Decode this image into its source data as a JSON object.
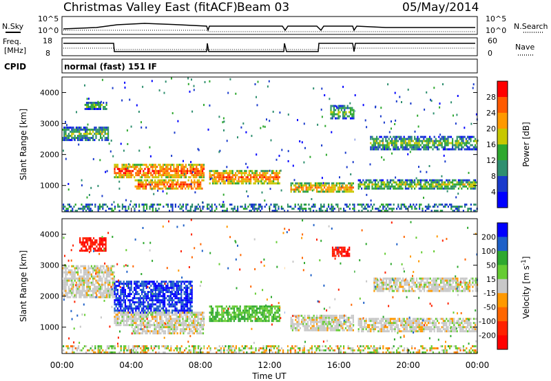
{
  "header": {
    "station": "Christmas Valley East (fitACF)",
    "beam": "Beam 03",
    "date": "05/May/2014"
  },
  "top_panels": {
    "nsky_label": "N.Sky",
    "nsky_ticks": [
      "10^5",
      "10^0"
    ],
    "nsearch_label": "N.Search",
    "nsearch_ticks": [
      "10^5",
      "10^0"
    ],
    "freq_label": "Freq.",
    "freq_unit": "[MHz]",
    "freq_ticks": [
      "18",
      "8"
    ],
    "nave_label": "Nave",
    "nave_ticks": [
      "60",
      "0"
    ],
    "cpid_label": "CPID",
    "cpid_value": "normal (fast) 151 IF"
  },
  "chart_data": [
    {
      "type": "heatmap",
      "name": "power",
      "ylabel": "Slant Range [km]",
      "xlabel": "",
      "ylim": [
        150,
        4500
      ],
      "xlim": [
        0,
        24
      ],
      "y_ticks": [
        "1000",
        "2000",
        "3000",
        "4000"
      ],
      "colorbar_label": "Power [dB]",
      "colorbar_ticks": [
        "28",
        "24",
        "20",
        "16",
        "12",
        "8",
        "4"
      ],
      "colorbar_colors": [
        "#ff0000",
        "#ff5a00",
        "#ff9900",
        "#c8c800",
        "#2ea82e",
        "#2f8f6f",
        "#1a3bcc",
        "#0000ff"
      ],
      "bands": [
        {
          "t0": 0.0,
          "t1": 2.7,
          "r0": 2500,
          "r1": 2900,
          "value": 14
        },
        {
          "t0": 1.3,
          "t1": 2.6,
          "r0": 3500,
          "r1": 3700,
          "value": 16
        },
        {
          "t0": 3.0,
          "t1": 8.2,
          "r0": 1300,
          "r1": 1700,
          "value": 26
        },
        {
          "t0": 4.2,
          "t1": 8.2,
          "r0": 900,
          "r1": 1200,
          "value": 26
        },
        {
          "t0": 8.5,
          "t1": 12.6,
          "r0": 1100,
          "r1": 1500,
          "value": 24
        },
        {
          "t0": 13.2,
          "t1": 16.8,
          "r0": 800,
          "r1": 1100,
          "value": 22
        },
        {
          "t0": 17.1,
          "t1": 24.0,
          "r0": 900,
          "r1": 1200,
          "value": 16
        },
        {
          "t0": 17.8,
          "t1": 24.0,
          "r0": 2200,
          "r1": 2600,
          "value": 14
        },
        {
          "t0": 15.5,
          "t1": 16.9,
          "r0": 3200,
          "r1": 3600,
          "value": 14
        }
      ]
    },
    {
      "type": "heatmap",
      "name": "velocity",
      "ylabel": "Slant Range [km]",
      "xlabel": "Time UT",
      "ylim": [
        150,
        4500
      ],
      "xlim": [
        0,
        24
      ],
      "y_ticks": [
        "1000",
        "2000",
        "3000",
        "4000"
      ],
      "x_ticks": [
        "00:00",
        "04:00",
        "08:00",
        "12:00",
        "16:00",
        "20:00",
        "00:00"
      ],
      "colorbar_label": "Velocity [m s",
      "colorbar_label_sup": "-1",
      "colorbar_label_end": "]",
      "colorbar_ticks": [
        "200",
        "100",
        "50",
        "15",
        "-15",
        "-50",
        "-100",
        "-200"
      ],
      "colorbar_colors": [
        "#0000ff",
        "#1e60c8",
        "#2ea82e",
        "#66cc33",
        "#c8c8c8",
        "#ff9900",
        "#ff6600",
        "#ff2200",
        "#ff0000"
      ],
      "bands": [
        {
          "t0": 0.0,
          "t1": 3.0,
          "r0": 2000,
          "r1": 3000,
          "value": 0
        },
        {
          "t0": 1.0,
          "t1": 2.5,
          "r0": 3500,
          "r1": 3900,
          "value": -200
        },
        {
          "t0": 3.0,
          "t1": 7.5,
          "r0": 1500,
          "r1": 2500,
          "value": 200
        },
        {
          "t0": 3.0,
          "t1": 8.2,
          "r0": 1100,
          "r1": 1500,
          "value": 0
        },
        {
          "t0": 4.0,
          "t1": 8.2,
          "r0": 800,
          "r1": 1100,
          "value": 0
        },
        {
          "t0": 8.5,
          "t1": 12.6,
          "r0": 1200,
          "r1": 1700,
          "value": 50
        },
        {
          "t0": 13.2,
          "t1": 16.8,
          "r0": 900,
          "r1": 1400,
          "value": 0
        },
        {
          "t0": 15.6,
          "t1": 16.6,
          "r0": 3300,
          "r1": 3600,
          "value": -200
        },
        {
          "t0": 17.1,
          "t1": 24.0,
          "r0": 900,
          "r1": 1300,
          "value": 0
        },
        {
          "t0": 18.0,
          "t1": 24.0,
          "r0": 2200,
          "r1": 2600,
          "value": 0
        }
      ]
    }
  ]
}
